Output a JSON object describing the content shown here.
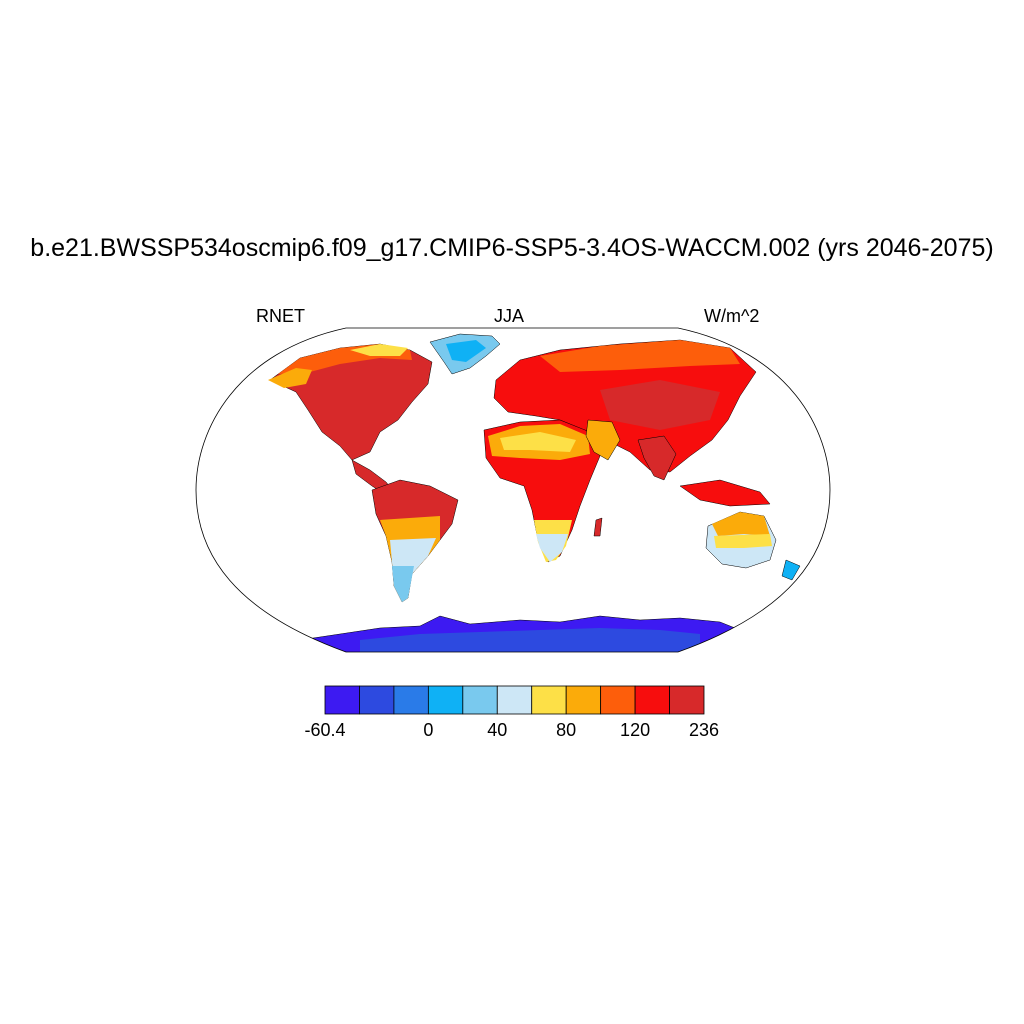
{
  "title": "b.e21.BWSSP534oscmip6.f09_g17.CMIP6-SSP5-3.4OS-WACCM.002 (yrs 2046-2075)",
  "left_string": "RNET",
  "center_string": "JJA",
  "right_string": "W/m^2",
  "map": {
    "projection": "Robinson-like",
    "ocean_color": "#ffffff",
    "coastline_color": "#000000"
  },
  "colorbar": {
    "colors": [
      "#3d1af2",
      "#2d4ae0",
      "#2a7be8",
      "#0fb1f5",
      "#79c9ee",
      "#cde7f6",
      "#fde047",
      "#fbab0a",
      "#fd5e0b",
      "#f70d0d",
      "#d7292a"
    ],
    "labels": [
      "-60.4",
      "0",
      "40",
      "80",
      "120",
      "236"
    ]
  }
}
